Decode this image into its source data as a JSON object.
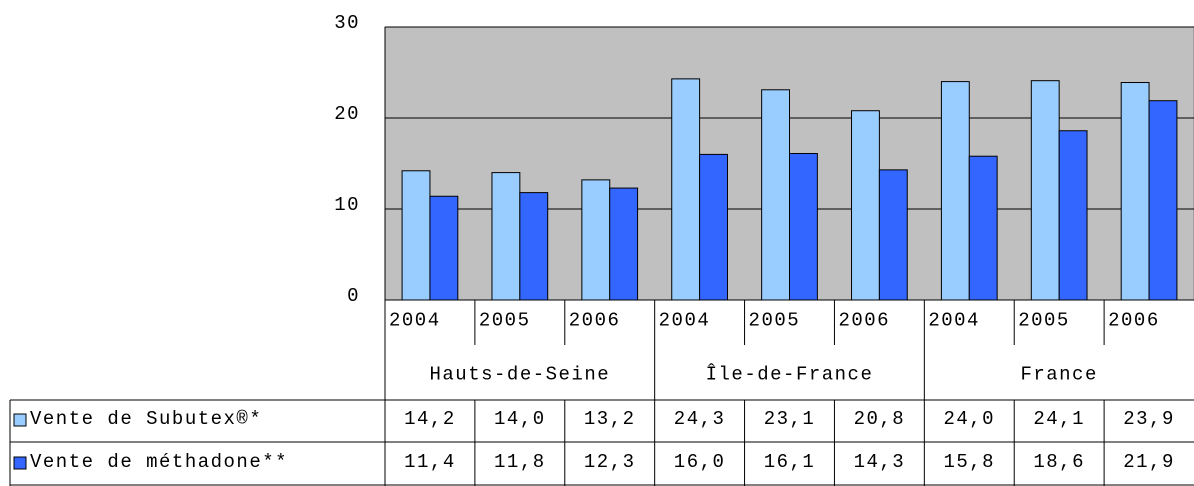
{
  "chart_data": {
    "type": "bar",
    "categories": [
      "2004",
      "2005",
      "2006",
      "2004",
      "2005",
      "2006",
      "2004",
      "2005",
      "2006"
    ],
    "groups": [
      "Hauts-de-Seine",
      "Île-de-France",
      "France"
    ],
    "series": [
      {
        "name": "Vente de Subutex®*",
        "color": "#99ccff",
        "values": [
          14.2,
          14.0,
          13.2,
          24.3,
          23.1,
          20.8,
          24.0,
          24.1,
          23.9
        ],
        "value_labels": [
          "14,2",
          "14,0",
          "13,2",
          "24,3",
          "23,1",
          "20,8",
          "24,0",
          "24,1",
          "23,9"
        ]
      },
      {
        "name": "Vente de méthadone**",
        "color": "#3366ff",
        "values": [
          11.4,
          11.8,
          12.3,
          16.0,
          16.1,
          14.3,
          15.8,
          18.6,
          21.9
        ],
        "value_labels": [
          "11,4",
          "11,8",
          "12,3",
          "16,0",
          "16,1",
          "14,3",
          "15,8",
          "18,6",
          "21,9"
        ]
      }
    ],
    "ylim": [
      0,
      30
    ],
    "yticks": [
      0,
      10,
      20,
      30
    ],
    "grid": true
  }
}
